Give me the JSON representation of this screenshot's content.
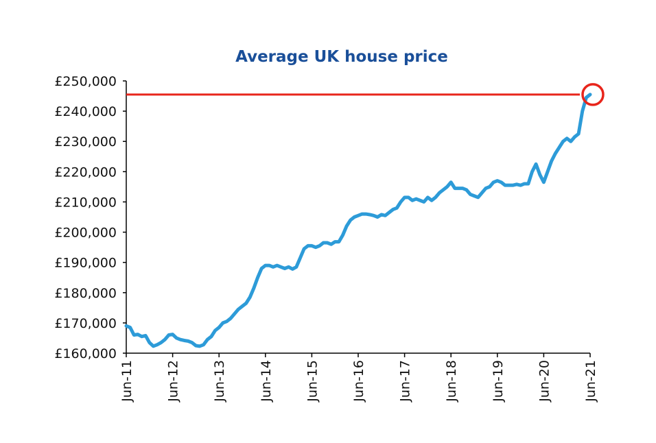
{
  "chart_data": {
    "type": "line",
    "title": "Average UK house price",
    "categories": [
      "Jun-11",
      null,
      null,
      null,
      null,
      null,
      null,
      null,
      null,
      null,
      null,
      null,
      "Jun-12",
      null,
      null,
      null,
      null,
      null,
      null,
      null,
      null,
      null,
      null,
      null,
      "Jun-13",
      null,
      null,
      null,
      null,
      null,
      null,
      null,
      null,
      null,
      null,
      null,
      "Jun-14",
      null,
      null,
      null,
      null,
      null,
      null,
      null,
      null,
      null,
      null,
      null,
      "Jun-15",
      null,
      null,
      null,
      null,
      null,
      null,
      null,
      null,
      null,
      null,
      null,
      "Jun-16",
      null,
      null,
      null,
      null,
      null,
      null,
      null,
      null,
      null,
      null,
      null,
      "Jun-17",
      null,
      null,
      null,
      null,
      null,
      null,
      null,
      null,
      null,
      null,
      null,
      "Jun-18",
      null,
      null,
      null,
      null,
      null,
      null,
      null,
      null,
      null,
      null,
      null,
      "Jun-19",
      null,
      null,
      null,
      null,
      null,
      null,
      null,
      null,
      null,
      null,
      null,
      "Jun-20",
      null,
      null,
      null,
      null,
      null,
      null,
      null,
      null,
      null,
      null,
      null,
      "Jun-21"
    ],
    "series": [
      {
        "name": "Average UK house price",
        "color": "#2d9bd8",
        "values": [
          169000,
          168500,
          166000,
          166200,
          165500,
          165800,
          163500,
          162300,
          162800,
          163500,
          164500,
          166000,
          166200,
          165000,
          164500,
          164200,
          164000,
          163500,
          162500,
          162300,
          162800,
          164500,
          165500,
          167500,
          168500,
          170000,
          170500,
          171500,
          173000,
          174500,
          175500,
          176500,
          178500,
          181500,
          185000,
          188000,
          189000,
          189000,
          188500,
          189000,
          188500,
          188000,
          188500,
          187800,
          188500,
          191500,
          194500,
          195500,
          195500,
          195000,
          195500,
          196500,
          196500,
          196000,
          196800,
          196800,
          199000,
          202000,
          204000,
          205000,
          205500,
          206000,
          206000,
          205800,
          205500,
          205000,
          205800,
          205500,
          206500,
          207500,
          208000,
          210000,
          211500,
          211500,
          210500,
          211000,
          210500,
          210000,
          211500,
          210500,
          211500,
          213000,
          214000,
          215000,
          216500,
          214500,
          214500,
          214500,
          214000,
          212500,
          212000,
          211500,
          213000,
          214500,
          215000,
          216500,
          217000,
          216500,
          215500,
          215500,
          215500,
          215800,
          215500,
          216000,
          216000,
          220000,
          222500,
          219000,
          216500,
          220000,
          223500,
          226000,
          228000,
          230000,
          231000,
          230000,
          231500,
          232500,
          240000,
          244500,
          245500
        ]
      }
    ],
    "hline": {
      "value": 245500,
      "color": "#e8251b"
    },
    "ylim": [
      160000,
      250000
    ],
    "yticks": [
      {
        "value": 160000,
        "label": "£160,000"
      },
      {
        "value": 170000,
        "label": "£170,000"
      },
      {
        "value": 180000,
        "label": "£180,000"
      },
      {
        "value": 190000,
        "label": "£190,000"
      },
      {
        "value": 200000,
        "label": "£200,000"
      },
      {
        "value": 210000,
        "label": "£210,000"
      },
      {
        "value": 220000,
        "label": "£220,000"
      },
      {
        "value": 230000,
        "label": "£230,000"
      },
      {
        "value": 240000,
        "label": "£240,000"
      },
      {
        "value": 250000,
        "label": "£250,000"
      }
    ],
    "grid": false
  }
}
